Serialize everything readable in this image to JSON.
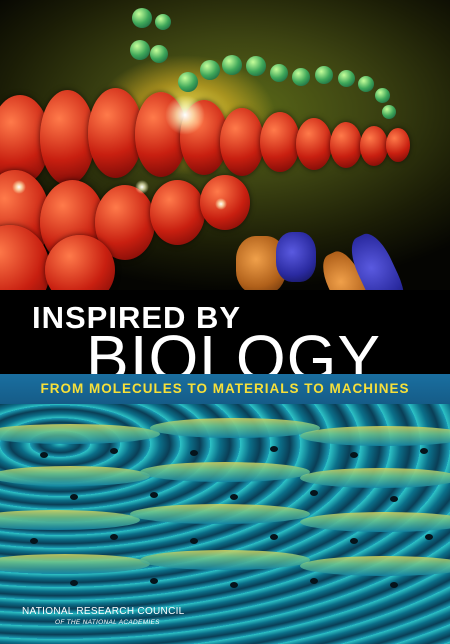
{
  "cover": {
    "title_line1": "INSPIRED BY",
    "title_line2": "BIOLOGY",
    "subtitle": "FROM MOLECULES TO MATERIALS TO MACHINES",
    "publisher": "NATIONAL RESEARCH COUNCIL",
    "publisher_sub": "OF THE NATIONAL ACADEMIES"
  },
  "colors": {
    "title": "#ffffff",
    "subtitle_text": "#f6e03a",
    "subtitle_bar": "#1a6fa0",
    "background": "#000000"
  }
}
